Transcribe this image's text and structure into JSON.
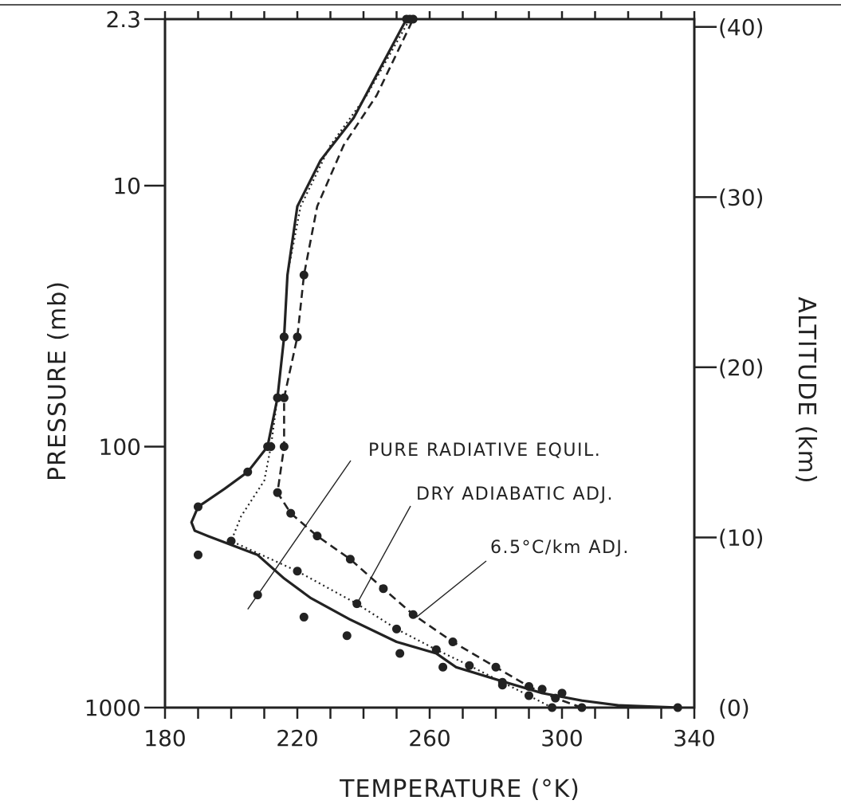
{
  "chart_data": {
    "type": "line",
    "x_axis": {
      "label": "TEMPERATURE (°K)",
      "range": [
        180,
        340
      ],
      "tick_labels": [
        "180",
        "220",
        "260",
        "300",
        "340"
      ],
      "tick_values": [
        180,
        220,
        260,
        300,
        340
      ],
      "minor_tick_step": 10
    },
    "y_axis_left": {
      "label": "PRESSURE (mb)",
      "scale": "log",
      "range": [
        1000,
        2.3
      ],
      "tick_labels": [
        "2.3",
        "10",
        "100",
        "1000"
      ],
      "tick_values": [
        2.3,
        10,
        100,
        1000
      ]
    },
    "y_axis_right": {
      "label": "ALTITUDE (km)",
      "tick_labels": [
        "(40)",
        "(30)",
        "(20)",
        "(10)",
        "(0)"
      ],
      "tick_values": [
        40,
        30,
        20,
        10,
        0
      ]
    },
    "grid": false,
    "series": [
      {
        "name": "PURE RADIATIVE EQUIL.",
        "style": "solid",
        "points": [
          [
            335,
            1000
          ],
          [
            317,
            980
          ],
          [
            306,
            940
          ],
          [
            294,
            880
          ],
          [
            283,
            800
          ],
          [
            268,
            700
          ],
          [
            262,
            620
          ],
          [
            250,
            560
          ],
          [
            236,
            460
          ],
          [
            224,
            380
          ],
          [
            216,
            320
          ],
          [
            208,
            260
          ],
          [
            193,
            220
          ],
          [
            189,
            210
          ],
          [
            188,
            195
          ],
          [
            190,
            170
          ],
          [
            198,
            145
          ],
          [
            205,
            125
          ],
          [
            211,
            100
          ],
          [
            214,
            65
          ],
          [
            216,
            38
          ],
          [
            217,
            22
          ],
          [
            220,
            12
          ],
          [
            227,
            8
          ],
          [
            237,
            5.5
          ],
          [
            253,
            2.3
          ]
        ],
        "markers": [
          [
            335,
            1000
          ],
          [
            300,
            880
          ],
          [
            294,
            850
          ],
          [
            282,
            820
          ],
          [
            264,
            700
          ],
          [
            251,
            620
          ],
          [
            235,
            530
          ],
          [
            222,
            450
          ],
          [
            208,
            370
          ],
          [
            190,
            260
          ],
          [
            190,
            170
          ],
          [
            205,
            125
          ],
          [
            211,
            100
          ],
          [
            214,
            65
          ],
          [
            216,
            38
          ],
          [
            253,
            2.3
          ]
        ]
      },
      {
        "name": "DRY ADIABATIC ADJ.",
        "style": "dotted",
        "points": [
          [
            297,
            1000
          ],
          [
            290,
            900
          ],
          [
            282,
            800
          ],
          [
            272,
            690
          ],
          [
            262,
            600
          ],
          [
            250,
            500
          ],
          [
            238,
            400
          ],
          [
            220,
            300
          ],
          [
            200,
            230
          ],
          [
            203,
            185
          ],
          [
            210,
            135
          ],
          [
            212,
            100
          ],
          [
            214,
            65
          ],
          [
            216,
            38
          ],
          [
            217,
            22
          ],
          [
            221,
            12
          ],
          [
            230,
            7
          ],
          [
            241,
            4.5
          ],
          [
            254,
            2.3
          ]
        ],
        "markers": [
          [
            297,
            1000
          ],
          [
            290,
            900
          ],
          [
            282,
            800
          ],
          [
            272,
            690
          ],
          [
            262,
            600
          ],
          [
            250,
            500
          ],
          [
            238,
            400
          ],
          [
            220,
            300
          ],
          [
            200,
            230
          ],
          [
            212,
            100
          ],
          [
            214,
            65
          ],
          [
            216,
            38
          ],
          [
            254,
            2.3
          ]
        ]
      },
      {
        "name": "6.5°C/km ADJ.",
        "style": "dashed",
        "points": [
          [
            306,
            1000
          ],
          [
            298,
            920
          ],
          [
            290,
            830
          ],
          [
            280,
            700
          ],
          [
            267,
            560
          ],
          [
            255,
            440
          ],
          [
            246,
            350
          ],
          [
            236,
            270
          ],
          [
            226,
            220
          ],
          [
            218,
            180
          ],
          [
            214,
            150
          ],
          [
            216,
            100
          ],
          [
            216,
            65
          ],
          [
            220,
            38
          ],
          [
            222,
            22
          ],
          [
            226,
            12
          ],
          [
            234,
            7
          ],
          [
            244,
            4.5
          ],
          [
            255,
            2.3
          ]
        ],
        "markers": [
          [
            306,
            1000
          ],
          [
            298,
            920
          ],
          [
            290,
            830
          ],
          [
            280,
            700
          ],
          [
            267,
            560
          ],
          [
            255,
            440
          ],
          [
            246,
            350
          ],
          [
            236,
            270
          ],
          [
            226,
            220
          ],
          [
            218,
            180
          ],
          [
            214,
            150
          ],
          [
            216,
            100
          ],
          [
            216,
            65
          ],
          [
            220,
            38
          ],
          [
            222,
            22
          ],
          [
            255,
            2.3
          ]
        ]
      }
    ],
    "annotations": [
      {
        "text": "PURE RADIATIVE EQUIL.",
        "points_to": [
          205,
          420
        ]
      },
      {
        "text": "DRY ADIABATIC ADJ.",
        "points_to": [
          238,
          400
        ]
      },
      {
        "text": "6.5°C/km ADJ.",
        "points_to": [
          256,
          450
        ]
      }
    ]
  }
}
